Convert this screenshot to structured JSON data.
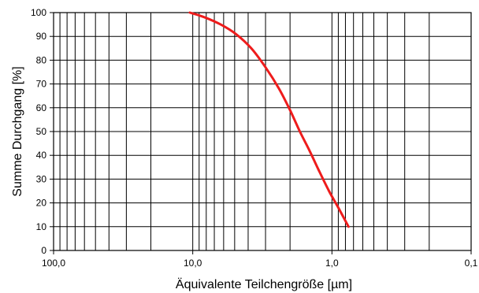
{
  "chart_data": {
    "type": "line",
    "title": "",
    "xlabel": "Äquivalente Teilchengröße [µm]",
    "ylabel": "Summe Durchgang [%]",
    "x_scale": "log",
    "x_reversed": true,
    "xlim": [
      100,
      0.1
    ],
    "ylim": [
      0,
      100
    ],
    "grid": true,
    "legend": "none",
    "x_ticks": [
      {
        "value": 100,
        "label": "100,0"
      },
      {
        "value": 10,
        "label": "10,0"
      },
      {
        "value": 1,
        "label": "1,0"
      },
      {
        "value": 0.1,
        "label": "0,1"
      }
    ],
    "y_ticks": [
      {
        "value": 0,
        "label": "0"
      },
      {
        "value": 10,
        "label": "10"
      },
      {
        "value": 20,
        "label": "20"
      },
      {
        "value": 30,
        "label": "30"
      },
      {
        "value": 40,
        "label": "40"
      },
      {
        "value": 50,
        "label": "50"
      },
      {
        "value": 60,
        "label": "60"
      },
      {
        "value": 70,
        "label": "70"
      },
      {
        "value": 80,
        "label": "80"
      },
      {
        "value": 90,
        "label": "90"
      },
      {
        "value": 100,
        "label": "100"
      }
    ],
    "series": [
      {
        "color": "#ee1c1c",
        "x": [
          10.5,
          8.2,
          6.3,
          4.9,
          3.8,
          3.0,
          2.4,
          2.0,
          1.7,
          1.45,
          1.25,
          1.05,
          0.9,
          0.76
        ],
        "y": [
          100,
          98,
          95,
          91,
          85,
          77,
          68,
          59,
          50,
          42,
          34,
          25,
          18,
          10
        ]
      }
    ]
  }
}
